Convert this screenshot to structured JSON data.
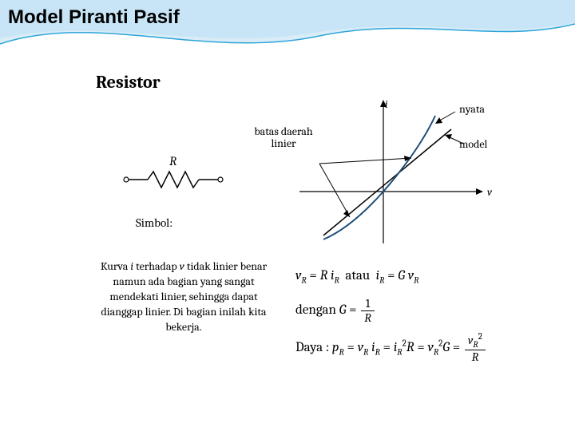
{
  "slide": {
    "title": "Model Piranti Pasif",
    "subtitle": "Resistor",
    "symbol_label": "Simbol:",
    "R": "R",
    "body_text_html": "Kurva <span class='ital'>i</span> terhadap <span class='ital'>v</span> tidak linier benar namun ada bagian yang sangat mendekati linier, sehingga dapat dianggap linier. Di bagian inilah kita bekerja."
  },
  "graph": {
    "axis_i": "i",
    "axis_v": "v",
    "label_nyata": "nyata",
    "label_model": "model",
    "label_batas": "batas daerah linier",
    "colors": {
      "axis": "#000000",
      "model_line": "#000000",
      "nyata_curve": "#1f4e79",
      "batas_line": "#000000"
    }
  },
  "equations": {
    "row1_html": "<span class='ital'>v</span><span class='sub'>R</span> = <span class='ital'>R i</span><span class='sub'>R</span>&nbsp; atau &nbsp;<span class='ital'>i</span><span class='sub'>R</span> = <span class='ital'>G v</span><span class='sub'>R</span>",
    "row2_prefix": "dengan ",
    "row3_prefix": "Daya : ",
    "row3_html": "<span class='ital'>p</span><span class='sub'>R</span> = <span class='ital'>v</span><span class='sub'>R</span> <span class='ital'>i</span><span class='sub'>R</span> = <span class='ital'>i</span><span class='sub'>R</span><span class='sup'>2</span><span class='ital'>R</span> = <span class='ital'>v</span><span class='sub'>R</span><span class='sup'>2</span><span class='ital'>G</span> = "
  },
  "wave": {
    "color_light": "#d9ecf7",
    "color_mid": "#bfe3f5",
    "color_line": "#2da5d9"
  }
}
